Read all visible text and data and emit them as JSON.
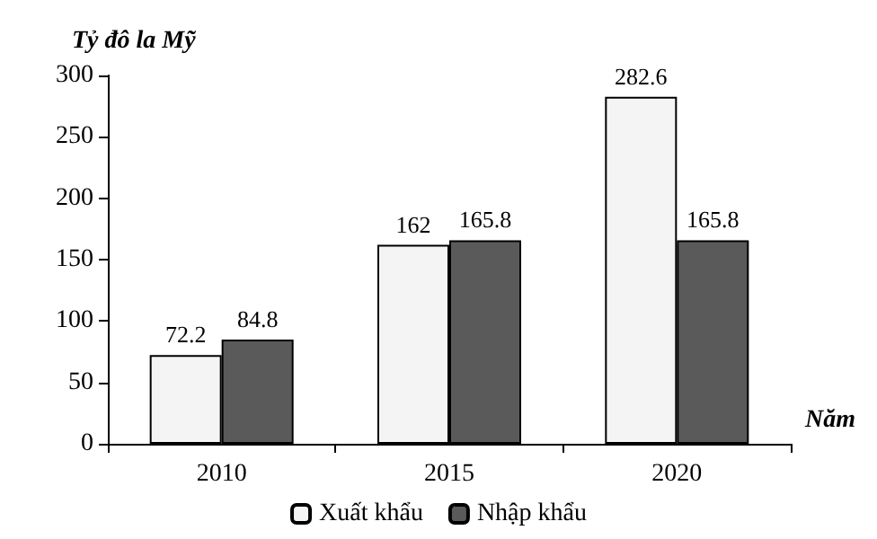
{
  "chart_data": {
    "type": "bar",
    "ylabel": "Tỷ đô la Mỹ",
    "xlabel": "Năm",
    "categories": [
      "2010",
      "2015",
      "2020"
    ],
    "series": [
      {
        "name": "Xuất khẩu",
        "color": "#f4f4f4",
        "values": [
          72.2,
          162,
          282.6
        ]
      },
      {
        "name": "Nhập khẩu",
        "color": "#5a5a5a",
        "values": [
          84.8,
          165.8,
          165.8
        ]
      }
    ],
    "ylim": [
      0,
      300
    ],
    "yticks": [
      0,
      50,
      100,
      150,
      200,
      250,
      300
    ],
    "data_labels": true,
    "grid": false,
    "legend": "bottom"
  }
}
